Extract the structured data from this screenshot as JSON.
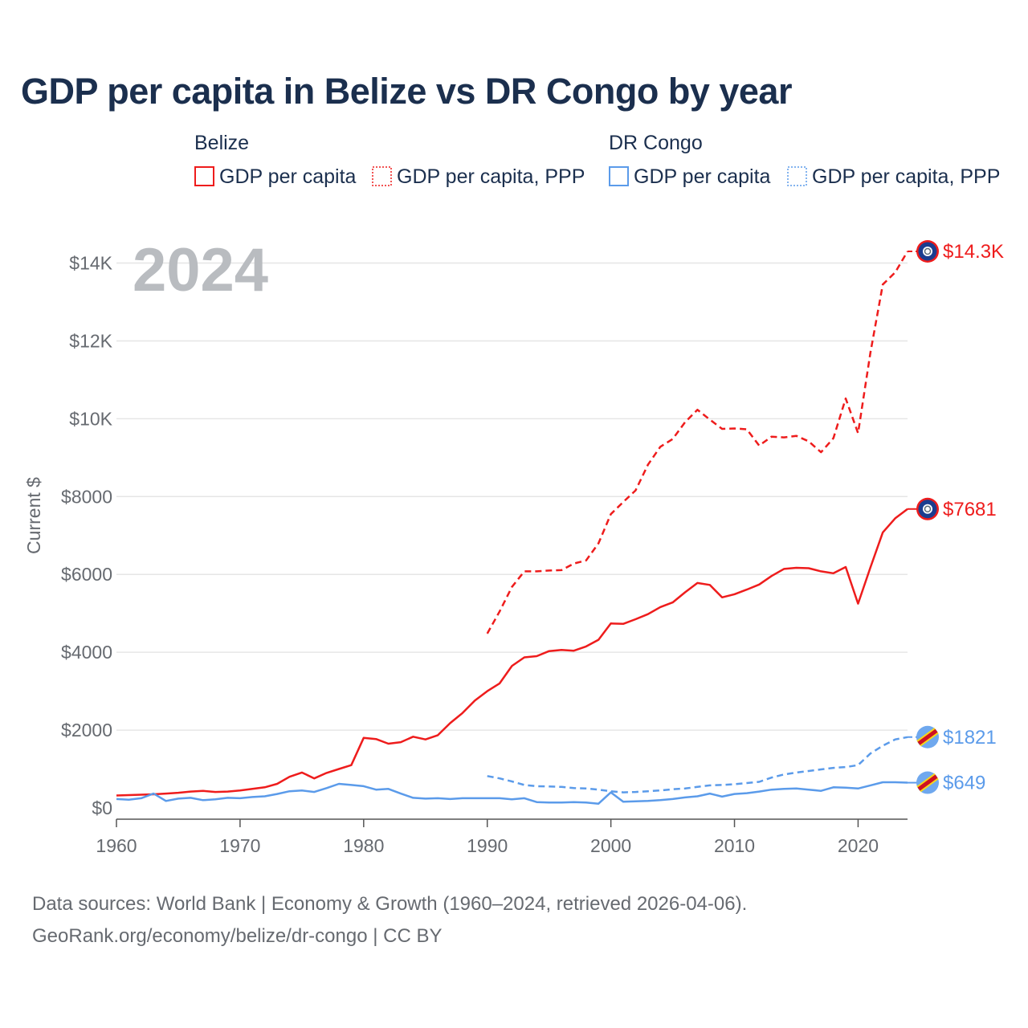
{
  "title": "GDP per capita in Belize vs DR Congo by year",
  "colors": {
    "belize": "#ee1c1c",
    "drc": "#5b9bea",
    "grid": "#e6e6e6",
    "axis": "#555555",
    "badge_navy": "#1b3d8f"
  },
  "legend": {
    "groups": [
      {
        "name": "Belize",
        "items": [
          {
            "label": "GDP per capita",
            "style": "solid"
          },
          {
            "label": "GDP per capita, PPP",
            "style": "dotted"
          }
        ]
      },
      {
        "name": "DR Congo",
        "items": [
          {
            "label": "GDP per capita",
            "style": "solid"
          },
          {
            "label": "GDP per capita, PPP",
            "style": "dotted"
          }
        ]
      }
    ]
  },
  "chart_data": {
    "type": "line",
    "title": "GDP per capita in Belize vs DR Congo by year",
    "year_label": "2024",
    "ylabel": "Current $",
    "xlabel": "",
    "xlim": [
      1960,
      2024
    ],
    "ylim": [
      0,
      14300
    ],
    "x_ticks": [
      1960,
      1970,
      1980,
      1990,
      2000,
      2010,
      2020
    ],
    "y_ticks": [
      {
        "value": 0,
        "label": "$0"
      },
      {
        "value": 2000,
        "label": "$2000"
      },
      {
        "value": 4000,
        "label": "$4000"
      },
      {
        "value": 6000,
        "label": "$6000"
      },
      {
        "value": 8000,
        "label": "$8000"
      },
      {
        "value": 10000,
        "label": "$10K"
      },
      {
        "value": 12000,
        "label": "$12K"
      },
      {
        "value": 14000,
        "label": "$14K"
      }
    ],
    "series": [
      {
        "name": "Belize GDP per capita",
        "country": "Belize",
        "dash": "solid",
        "end_label": "$7681",
        "x": [
          1960,
          1961,
          1962,
          1963,
          1964,
          1965,
          1966,
          1967,
          1968,
          1969,
          1970,
          1971,
          1972,
          1973,
          1974,
          1975,
          1976,
          1977,
          1978,
          1979,
          1980,
          1981,
          1982,
          1983,
          1984,
          1985,
          1986,
          1987,
          1988,
          1989,
          1990,
          1991,
          1992,
          1993,
          1994,
          1995,
          1996,
          1997,
          1998,
          1999,
          2000,
          2001,
          2002,
          2003,
          2004,
          2005,
          2006,
          2007,
          2008,
          2009,
          2010,
          2011,
          2012,
          2013,
          2014,
          2015,
          2016,
          2017,
          2018,
          2019,
          2020,
          2021,
          2022,
          2023,
          2024
        ],
        "values": [
          320,
          330,
          340,
          350,
          370,
          390,
          420,
          440,
          410,
          420,
          450,
          490,
          530,
          620,
          800,
          910,
          760,
          900,
          1000,
          1100,
          1800,
          1770,
          1650,
          1690,
          1830,
          1760,
          1870,
          2180,
          2440,
          2760,
          3000,
          3200,
          3650,
          3870,
          3900,
          4030,
          4060,
          4040,
          4150,
          4320,
          4740,
          4730,
          4850,
          4980,
          5160,
          5280,
          5540,
          5780,
          5730,
          5410,
          5490,
          5610,
          5740,
          5960,
          6140,
          6170,
          6160,
          6080,
          6030,
          6190,
          5250,
          6180,
          7080,
          7440,
          7681
        ]
      },
      {
        "name": "Belize GDP per capita, PPP",
        "country": "Belize",
        "dash": "dashed",
        "end_label": "$14.3K",
        "x": [
          1990,
          1991,
          1992,
          1993,
          1994,
          1995,
          1996,
          1997,
          1998,
          1999,
          2000,
          2001,
          2002,
          2003,
          2004,
          2005,
          2006,
          2007,
          2008,
          2009,
          2010,
          2011,
          2012,
          2013,
          2014,
          2015,
          2016,
          2017,
          2018,
          2019,
          2020,
          2021,
          2022,
          2023,
          2024
        ],
        "values": [
          4480,
          5050,
          5680,
          6080,
          6080,
          6100,
          6110,
          6280,
          6360,
          6800,
          7550,
          7860,
          8160,
          8820,
          9280,
          9480,
          9910,
          10230,
          9980,
          9740,
          9750,
          9730,
          9310,
          9540,
          9520,
          9560,
          9420,
          9140,
          9500,
          10520,
          9630,
          11700,
          13450,
          13760,
          14300
        ]
      },
      {
        "name": "DR Congo GDP per capita",
        "country": "DR Congo",
        "dash": "solid",
        "end_label": "$649",
        "x": [
          1960,
          1961,
          1962,
          1963,
          1964,
          1965,
          1966,
          1967,
          1968,
          1969,
          1970,
          1971,
          1972,
          1973,
          1974,
          1975,
          1976,
          1977,
          1978,
          1979,
          1980,
          1981,
          1982,
          1983,
          1984,
          1985,
          1986,
          1987,
          1988,
          1989,
          1990,
          1991,
          1992,
          1993,
          1994,
          1995,
          1996,
          1997,
          1998,
          1999,
          2000,
          2001,
          2002,
          2003,
          2004,
          2005,
          2006,
          2007,
          2008,
          2009,
          2010,
          2011,
          2012,
          2013,
          2014,
          2015,
          2016,
          2017,
          2018,
          2019,
          2020,
          2021,
          2022,
          2023,
          2024
        ],
        "values": [
          230,
          210,
          250,
          370,
          180,
          240,
          260,
          200,
          220,
          260,
          250,
          280,
          300,
          360,
          430,
          450,
          410,
          510,
          620,
          590,
          560,
          470,
          490,
          370,
          260,
          240,
          250,
          230,
          250,
          250,
          250,
          250,
          220,
          250,
          150,
          140,
          140,
          150,
          140,
          110,
          400,
          160,
          170,
          180,
          200,
          230,
          270,
          300,
          370,
          290,
          360,
          380,
          420,
          470,
          490,
          500,
          470,
          440,
          530,
          520,
          500,
          580,
          660,
          660,
          649
        ]
      },
      {
        "name": "DR Congo GDP per capita, PPP",
        "country": "DR Congo",
        "dash": "dashed",
        "end_label": "$1821",
        "x": [
          1990,
          1991,
          1992,
          1993,
          1994,
          1995,
          1996,
          1997,
          1998,
          1999,
          2000,
          2001,
          2002,
          2003,
          2004,
          2005,
          2006,
          2007,
          2008,
          2009,
          2010,
          2011,
          2012,
          2013,
          2014,
          2015,
          2016,
          2017,
          2018,
          2019,
          2020,
          2021,
          2022,
          2023,
          2024
        ],
        "values": [
          820,
          760,
          680,
          590,
          560,
          550,
          540,
          510,
          500,
          470,
          430,
          400,
          410,
          430,
          450,
          480,
          500,
          540,
          580,
          590,
          610,
          640,
          670,
          780,
          860,
          910,
          950,
          990,
          1030,
          1050,
          1100,
          1400,
          1600,
          1760,
          1821
        ]
      }
    ]
  },
  "source": {
    "line1": "Data sources: World Bank | Economy & Growth (1960–2024, retrieved 2026-04-06).",
    "line2": "GeoRank.org/economy/belize/dr-congo | CC BY"
  }
}
